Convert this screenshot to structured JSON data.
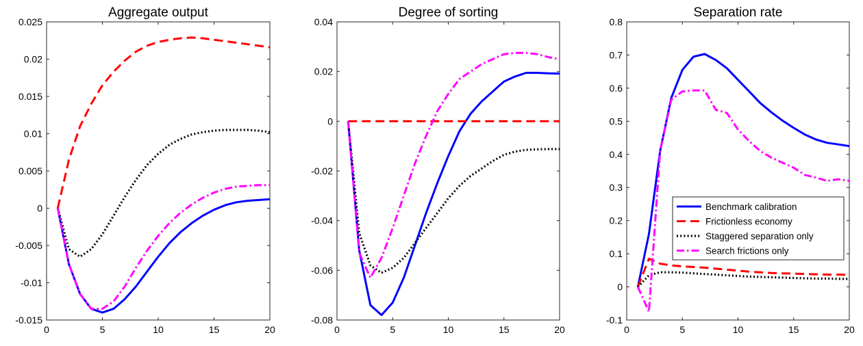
{
  "chart_data": [
    {
      "type": "line",
      "title": "Aggregate output",
      "xlim": [
        0,
        20
      ],
      "ylim": [
        -0.015,
        0.025
      ],
      "xticks": [
        0,
        5,
        10,
        15,
        20
      ],
      "xtick_labels": [
        "0",
        "5",
        "10",
        "15",
        "20"
      ],
      "yticks": [
        -0.015,
        -0.01,
        -0.005,
        0,
        0.005,
        0.01,
        0.015,
        0.02,
        0.025
      ],
      "ytick_labels": [
        "-0.015",
        "-0.01",
        "-0.005",
        "0",
        "0.005",
        "0.01",
        "0.015",
        "0.02",
        "0.025"
      ],
      "grid": false,
      "x": [
        1,
        2,
        3,
        4,
        5,
        6,
        7,
        8,
        9,
        10,
        11,
        12,
        13,
        14,
        15,
        16,
        17,
        18,
        19,
        20
      ],
      "series": [
        {
          "name": "Benchmark calibration",
          "color": "#0000ff",
          "style": "solid",
          "values": [
            0,
            -0.0075,
            -0.0115,
            -0.0135,
            -0.014,
            -0.0135,
            -0.0122,
            -0.0105,
            -0.0085,
            -0.0065,
            -0.0047,
            -0.0032,
            -0.002,
            -0.001,
            -0.0002,
            0.0004,
            0.0008,
            0.001,
            0.0011,
            0.0012
          ]
        },
        {
          "name": "Frictionless economy",
          "color": "#ff0000",
          "style": "dashed",
          "values": [
            0,
            0.0065,
            0.011,
            0.014,
            0.0165,
            0.0183,
            0.0198,
            0.021,
            0.0218,
            0.0223,
            0.0226,
            0.0228,
            0.0229,
            0.0228,
            0.0226,
            0.0224,
            0.0222,
            0.022,
            0.0218,
            0.0216
          ]
        },
        {
          "name": "Staggered separation only",
          "color": "#000000",
          "style": "dotted",
          "values": [
            0,
            -0.0055,
            -0.0065,
            -0.0055,
            -0.0035,
            -0.001,
            0.0015,
            0.0038,
            0.0058,
            0.0073,
            0.0085,
            0.0093,
            0.0099,
            0.0102,
            0.0104,
            0.0105,
            0.0105,
            0.0105,
            0.0104,
            0.0102
          ]
        },
        {
          "name": "Search frictions only",
          "color": "#ff00ff",
          "style": "dashdot",
          "values": [
            0,
            -0.0075,
            -0.0115,
            -0.0135,
            -0.0135,
            -0.0125,
            -0.0105,
            -0.008,
            -0.0057,
            -0.0037,
            -0.002,
            -0.0006,
            0.0005,
            0.0014,
            0.0021,
            0.0026,
            0.0029,
            0.003,
            0.0031,
            0.0031
          ]
        }
      ]
    },
    {
      "type": "line",
      "title": "Degree of sorting",
      "xlim": [
        0,
        20
      ],
      "ylim": [
        -0.08,
        0.04
      ],
      "xticks": [
        0,
        5,
        10,
        15,
        20
      ],
      "xtick_labels": [
        "0",
        "5",
        "10",
        "15",
        "20"
      ],
      "yticks": [
        -0.08,
        -0.06,
        -0.04,
        -0.02,
        0,
        0.02,
        0.04
      ],
      "ytick_labels": [
        "-0.08",
        "-0.06",
        "-0.04",
        "-0.02",
        "0",
        "0.02",
        "0.04"
      ],
      "grid": false,
      "x": [
        1,
        2,
        3,
        4,
        5,
        6,
        7,
        8,
        9,
        10,
        11,
        12,
        13,
        14,
        15,
        16,
        17,
        18,
        19,
        20
      ],
      "series": [
        {
          "name": "Benchmark calibration",
          "color": "#0000ff",
          "style": "solid",
          "values": [
            0,
            -0.052,
            -0.074,
            -0.078,
            -0.073,
            -0.063,
            -0.05,
            -0.037,
            -0.025,
            -0.014,
            -0.004,
            0.003,
            0.008,
            0.012,
            0.016,
            0.018,
            0.0195,
            0.0195,
            0.0193,
            0.0192
          ]
        },
        {
          "name": "Frictionless economy",
          "color": "#ff0000",
          "style": "dashed",
          "values": [
            0,
            0,
            0,
            0,
            0,
            0,
            0,
            0,
            0,
            0,
            0,
            0,
            0,
            0,
            0,
            0,
            0,
            0,
            0,
            0
          ]
        },
        {
          "name": "Staggered separation only",
          "color": "#000000",
          "style": "dotted",
          "values": [
            0,
            -0.045,
            -0.058,
            -0.061,
            -0.059,
            -0.055,
            -0.049,
            -0.043,
            -0.037,
            -0.031,
            -0.026,
            -0.022,
            -0.019,
            -0.016,
            -0.0135,
            -0.0122,
            -0.0115,
            -0.0113,
            -0.0112,
            -0.0112
          ]
        },
        {
          "name": "Search frictions only",
          "color": "#ff00ff",
          "style": "dashdot",
          "values": [
            0,
            -0.053,
            -0.063,
            -0.055,
            -0.043,
            -0.03,
            -0.017,
            -0.006,
            0.004,
            0.011,
            0.017,
            0.02,
            0.023,
            0.025,
            0.027,
            0.0275,
            0.0275,
            0.027,
            0.0258,
            0.025
          ]
        }
      ]
    },
    {
      "type": "line",
      "title": "Separation rate",
      "xlim": [
        0,
        20
      ],
      "ylim": [
        -0.1,
        0.8
      ],
      "xticks": [
        0,
        5,
        10,
        15,
        20
      ],
      "xtick_labels": [
        "0",
        "5",
        "10",
        "15",
        "20"
      ],
      "yticks": [
        -0.1,
        0,
        0.1,
        0.2,
        0.3,
        0.4,
        0.5,
        0.6,
        0.7,
        0.8
      ],
      "ytick_labels": [
        "-0.1",
        "0",
        "0.1",
        "0.2",
        "0.3",
        "0.4",
        "0.5",
        "0.6",
        "0.7",
        "0.8"
      ],
      "grid": false,
      "legend": "center-right",
      "x": [
        1,
        2,
        3,
        4,
        5,
        6,
        7,
        8,
        9,
        10,
        11,
        12,
        13,
        14,
        15,
        16,
        17,
        18,
        19,
        20
      ],
      "series": [
        {
          "name": "Benchmark calibration",
          "color": "#0000ff",
          "style": "solid",
          "values": [
            0,
            0.16,
            0.41,
            0.57,
            0.655,
            0.695,
            0.703,
            0.685,
            0.66,
            0.625,
            0.59,
            0.555,
            0.527,
            0.502,
            0.48,
            0.46,
            0.445,
            0.435,
            0.43,
            0.425
          ]
        },
        {
          "name": "Frictionless economy",
          "color": "#ff0000",
          "style": "dashed",
          "values": [
            0,
            0.085,
            0.07,
            0.065,
            0.062,
            0.06,
            0.058,
            0.055,
            0.052,
            0.049,
            0.046,
            0.044,
            0.042,
            0.041,
            0.04,
            0.039,
            0.038,
            0.037,
            0.037,
            0.036
          ]
        },
        {
          "name": "Staggered separation only",
          "color": "#000000",
          "style": "dotted",
          "values": [
            0,
            0.035,
            0.044,
            0.044,
            0.043,
            0.041,
            0.039,
            0.037,
            0.035,
            0.033,
            0.031,
            0.03,
            0.029,
            0.028,
            0.027,
            0.026,
            0.025,
            0.025,
            0.024,
            0.024
          ]
        },
        {
          "name": "Search frictions only",
          "color": "#ff00ff",
          "style": "dashdot",
          "values": [
            0,
            -0.075,
            0.41,
            0.565,
            0.59,
            0.593,
            0.593,
            0.535,
            0.525,
            0.475,
            0.44,
            0.41,
            0.39,
            0.375,
            0.36,
            0.338,
            0.33,
            0.32,
            0.325,
            0.32
          ]
        }
      ]
    }
  ]
}
